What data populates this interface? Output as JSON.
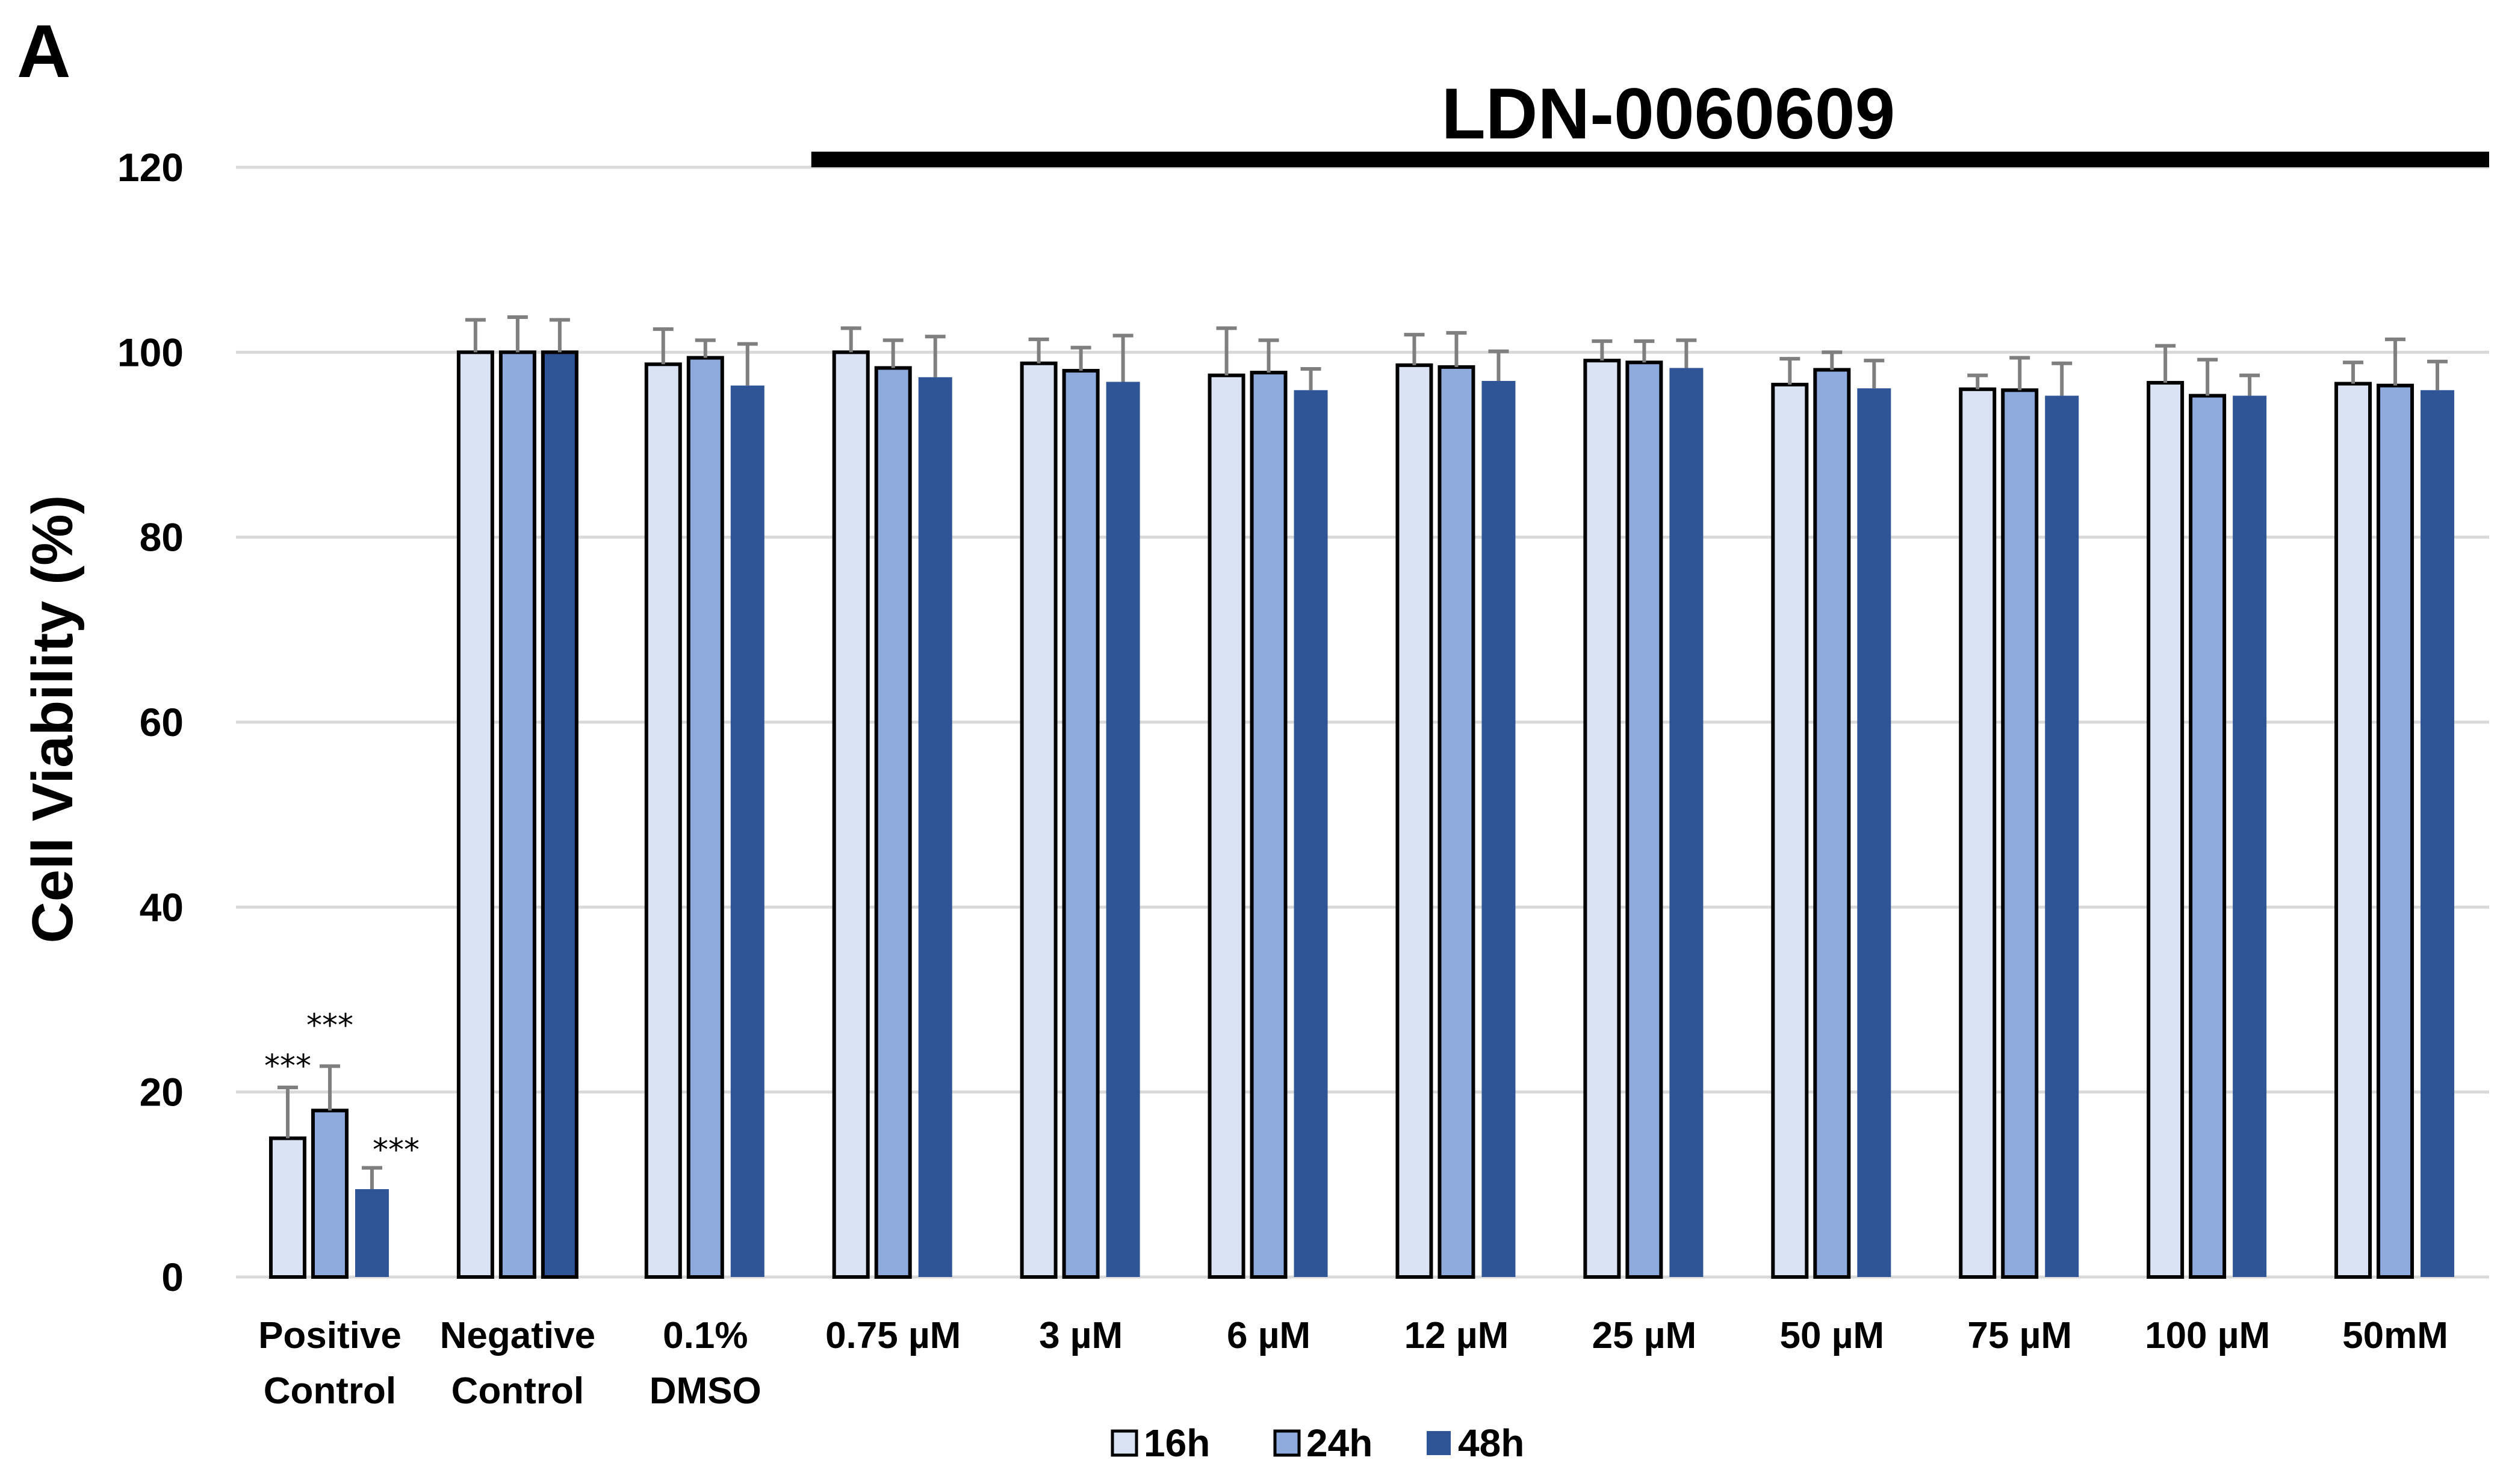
{
  "panel_label": "A",
  "chart_data": {
    "type": "bar",
    "title": "",
    "xlabel": "",
    "ylabel": "Cell Viability (%)",
    "ylim": [
      0,
      120
    ],
    "yticks": [
      0,
      20,
      40,
      60,
      80,
      100,
      120
    ],
    "grid": true,
    "legend_position": "bottom-center",
    "categories": [
      [
        "Positive",
        "Control"
      ],
      [
        "Negative",
        "Control"
      ],
      [
        "0.1%",
        "DMSO"
      ],
      [
        "0.75 µM"
      ],
      [
        "3 µM"
      ],
      [
        "6 µM"
      ],
      [
        "12 µM"
      ],
      [
        "25 µM"
      ],
      [
        "50 µM"
      ],
      [
        "75 µM"
      ],
      [
        "100 µM"
      ],
      [
        "50mM"
      ]
    ],
    "series": [
      {
        "name": "16h",
        "color": "#dae3f3",
        "values": [
          15.0,
          100.0,
          98.7,
          100.0,
          98.8,
          97.5,
          98.6,
          99.1,
          96.5,
          96.0,
          96.7,
          96.6
        ],
        "errors": [
          5.5,
          3.5,
          3.8,
          2.6,
          2.6,
          5.1,
          3.3,
          2.1,
          2.8,
          1.5,
          4.0,
          2.3
        ]
      },
      {
        "name": "24h",
        "color": "#8faadc",
        "values": [
          18.0,
          100.0,
          99.4,
          98.3,
          98.0,
          97.8,
          98.4,
          98.9,
          98.1,
          95.9,
          95.3,
          96.4
        ],
        "errors": [
          4.8,
          3.8,
          1.9,
          3.0,
          2.5,
          3.5,
          3.7,
          2.3,
          1.9,
          3.5,
          3.9,
          5.0
        ]
      },
      {
        "name": "48h",
        "color": "#2f5597",
        "values": [
          9.5,
          100.0,
          96.4,
          97.3,
          96.8,
          95.9,
          96.9,
          98.3,
          96.1,
          95.3,
          95.3,
          95.9
        ],
        "errors": [
          2.3,
          3.5,
          4.5,
          4.4,
          5.0,
          2.3,
          3.2,
          3.0,
          3.0,
          3.5,
          2.2,
          3.1
        ]
      }
    ],
    "annotations": [
      {
        "text": "***",
        "category": "Positive Control",
        "series": "16h"
      },
      {
        "text": "***",
        "category": "Positive Control",
        "series": "24h"
      },
      {
        "text": "***",
        "category": "Positive Control",
        "series": "48h"
      },
      {
        "text": "LDN-0060609",
        "type": "bracket",
        "from_category": "0.75 µM",
        "to_category": "50mM"
      }
    ]
  }
}
